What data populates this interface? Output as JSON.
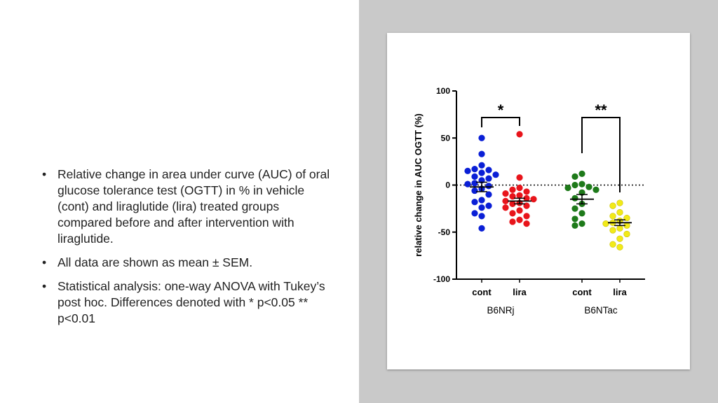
{
  "slide": {
    "bullets": [
      "Relative change in area under curve (AUC) of oral glucose tolerance test (OGTT) in % in vehicle (cont) and liraglutide (lira) treated groups compared before and after intervention with liraglutide.",
      "All data are shown as mean ± SEM.",
      "Statistical analysis: one-way ANOVA with Tukey’s post hoc. Differences denoted with * p<0.05 ** p<0.01"
    ]
  },
  "chart_data": {
    "type": "scatter",
    "ylabel": "relative change in AUC OGTT (%)",
    "ylim": [
      -100,
      100
    ],
    "yticks": [
      100,
      50,
      0,
      -50,
      -100
    ],
    "ytick_labels": [
      "100",
      "50",
      "0",
      "-50",
      "-100"
    ],
    "reference_line": 0,
    "groups": [
      {
        "label": "cont",
        "strain": "B6NRj",
        "color": "#0a1fd6",
        "mean": -2,
        "sem": 5,
        "values": [
          50,
          33,
          21,
          17,
          16,
          15,
          13,
          11,
          9,
          7,
          5,
          2,
          1,
          -1,
          -4,
          -6,
          -10,
          -16,
          -18,
          -22,
          -24,
          -30,
          -33,
          -46
        ]
      },
      {
        "label": "lira",
        "strain": "B6NRj",
        "color": "#e8141b",
        "mean": -17,
        "sem": 3,
        "values": [
          54,
          8,
          -3,
          -5,
          -7,
          -9,
          -11,
          -12,
          -14,
          -15,
          -17,
          -19,
          -20,
          -22,
          -24,
          -27,
          -30,
          -33,
          -37,
          -39,
          -41
        ]
      },
      {
        "label": "cont",
        "strain": "B6NTac",
        "color": "#1e7a1a",
        "mean": -15,
        "sem": 5,
        "values": [
          12,
          9,
          1,
          0,
          -2,
          -3,
          -5,
          -8,
          -14,
          -20,
          -25,
          -30,
          -36,
          -41,
          -43
        ]
      },
      {
        "label": "lira",
        "strain": "B6NTac",
        "color": "#f2ea18",
        "mean": -40,
        "sem": 3,
        "values": [
          -19,
          -22,
          -29,
          -33,
          -35,
          -38,
          -40,
          -41,
          -43,
          -46,
          -48,
          -52,
          -57,
          -63,
          -66
        ]
      }
    ],
    "strains": [
      "B6NRj",
      "B6NTac"
    ],
    "significance": [
      {
        "between": [
          "B6NRj cont",
          "B6NRj lira"
        ],
        "label": "*"
      },
      {
        "between": [
          "B6NTac cont",
          "B6NTac lira"
        ],
        "label": "**"
      }
    ]
  }
}
